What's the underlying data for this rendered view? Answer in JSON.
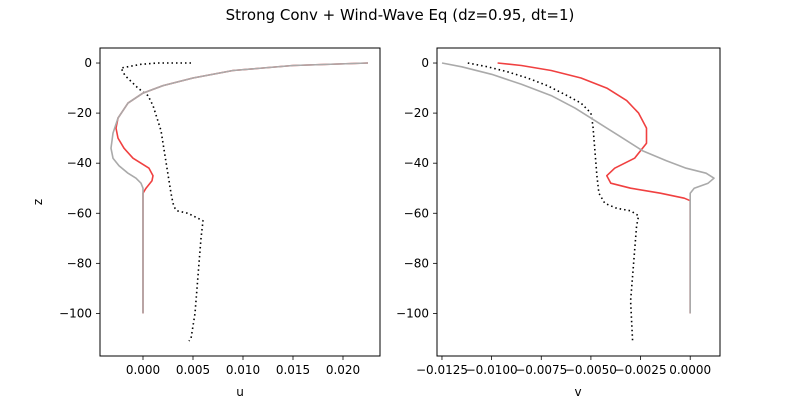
{
  "chart_data": {
    "title": "Strong Conv + Wind-Wave Eq (dz=0.95, dt=1)",
    "colors": {
      "series_red": "#f04040",
      "series_gray": "#aaaaaa",
      "series_dotted": "#000000"
    },
    "panels": [
      {
        "type": "line",
        "xlabel": "u",
        "ylabel": "z",
        "xlim": [
          -0.0043,
          0.0237
        ],
        "ylim": [
          -117,
          6
        ],
        "xticks": [
          0.0,
          0.005,
          0.01,
          0.015,
          0.02
        ],
        "xtick_labels": [
          "0.000",
          "0.005",
          "0.010",
          "0.015",
          "0.020"
        ],
        "yticks": [
          0,
          -20,
          -40,
          -60,
          -80,
          -100
        ],
        "ytick_labels": [
          "0",
          "−20",
          "−40",
          "−60",
          "−80",
          "−100"
        ],
        "series": [
          {
            "style": "dotted",
            "color": "#000000",
            "x": [
              0.0048,
              0.0015,
              -0.0002,
              -0.0022,
              -0.0018,
              -0.0005,
              0.0005,
              0.001,
              0.0014,
              0.0018,
              0.002,
              0.0022,
              0.0024,
              0.0026,
              0.0028,
              0.003,
              0.0032,
              0.0034,
              0.0045,
              0.006,
              0.0058,
              0.0056,
              0.0054,
              0.0052,
              0.005,
              0.0048,
              0.0046
            ],
            "y": [
              0,
              0,
              -0.5,
              -2,
              -5,
              -10,
              -13,
              -17,
              -22,
              -27,
              -32,
              -37,
              -42,
              -47,
              -52,
              -56,
              -58,
              -59,
              -60,
              -63,
              -70,
              -80,
              -90,
              -100,
              -105,
              -110,
              -111
            ]
          },
          {
            "style": "solid",
            "color": "#f04040",
            "x": [
              0.0225,
              0.015,
              0.009,
              0.005,
              0.002,
              0.0,
              -0.0015,
              -0.0025,
              -0.0027,
              -0.0025,
              -0.0019,
              -0.001,
              -0.0002,
              0.0006,
              0.001,
              0.0009,
              0.0003,
              0.0,
              0.0,
              0.0
            ],
            "y": [
              0,
              -1,
              -3,
              -6,
              -9,
              -12,
              -16,
              -22,
              -26,
              -30,
              -34,
              -38,
              -40,
              -42,
              -45,
              -47,
              -50,
              -52,
              -60,
              -100
            ]
          },
          {
            "style": "solid",
            "color": "#aaaaaa",
            "x": [
              0.0225,
              0.015,
              0.009,
              0.005,
              0.002,
              0.0,
              -0.0015,
              -0.0025,
              -0.003,
              -0.0032,
              -0.003,
              -0.0024,
              -0.0015,
              -0.0007,
              -0.0002,
              0.0,
              0.0
            ],
            "y": [
              0,
              -1,
              -3,
              -6,
              -9,
              -12,
              -16,
              -22,
              -28,
              -34,
              -38,
              -41,
              -44,
              -46,
              -48,
              -50,
              -100
            ]
          }
        ]
      },
      {
        "type": "line",
        "xlabel": "v",
        "ylabel": "",
        "xlim": [
          -0.01275,
          0.0015
        ],
        "ylim": [
          -117,
          6
        ],
        "xticks": [
          -0.0125,
          -0.01,
          -0.0075,
          -0.005,
          -0.0025,
          0.0
        ],
        "xtick_labels": [
          "−0.0125",
          "−0.0100",
          "−0.0075",
          "−0.0050",
          "−0.0025",
          "0.0000"
        ],
        "yticks": [
          0,
          -20,
          -40,
          -60,
          -80,
          -100
        ],
        "ytick_labels": [
          "0",
          "−20",
          "−40",
          "−60",
          "−80",
          "−100"
        ],
        "series": [
          {
            "style": "dotted",
            "color": "#000000",
            "x": [
              -0.0112,
              -0.0102,
              -0.0092,
              -0.0082,
              -0.0072,
              -0.0062,
              -0.0055,
              -0.005,
              -0.0049,
              -0.0048,
              -0.0047,
              -0.0046,
              -0.0043,
              -0.0037,
              -0.003,
              -0.0028,
              -0.0026,
              -0.0027,
              -0.0028,
              -0.0029,
              -0.003,
              -0.0029
            ],
            "y": [
              0,
              -1.5,
              -3.5,
              -6,
              -9,
              -13,
              -16,
              -20,
              -25,
              -35,
              -45,
              -52,
              -56,
              -58,
              -59,
              -60,
              -61,
              -65,
              -75,
              -85,
              -95,
              -111
            ]
          },
          {
            "style": "solid",
            "color": "#f04040",
            "x": [
              -0.0097,
              -0.0085,
              -0.007,
              -0.0055,
              -0.0042,
              -0.0032,
              -0.0026,
              -0.0022,
              -0.0022,
              -0.0028,
              -0.0038,
              -0.0042,
              -0.004,
              -0.003,
              -0.0015,
              -0.0003,
              0.0,
              0.0
            ],
            "y": [
              0,
              -1,
              -3,
              -6,
              -10,
              -15,
              -20,
              -26,
              -32,
              -38,
              -42,
              -45,
              -48,
              -50,
              -52,
              -54,
              -55,
              -100
            ]
          },
          {
            "style": "solid",
            "color": "#aaaaaa",
            "x": [
              -0.0125,
              -0.0115,
              -0.01,
              -0.0085,
              -0.007,
              -0.0058,
              -0.0048,
              -0.0036,
              -0.0024,
              -0.0012,
              -0.0002,
              0.0008,
              0.0012,
              0.0009,
              0.0002,
              0.0,
              0.0,
              0.0
            ],
            "y": [
              0,
              -1.5,
              -4.5,
              -8.5,
              -13,
              -18,
              -23,
              -29,
              -35,
              -39,
              -42,
              -44,
              -46,
              -48,
              -50,
              -52,
              -60,
              -100
            ]
          }
        ]
      }
    ]
  }
}
